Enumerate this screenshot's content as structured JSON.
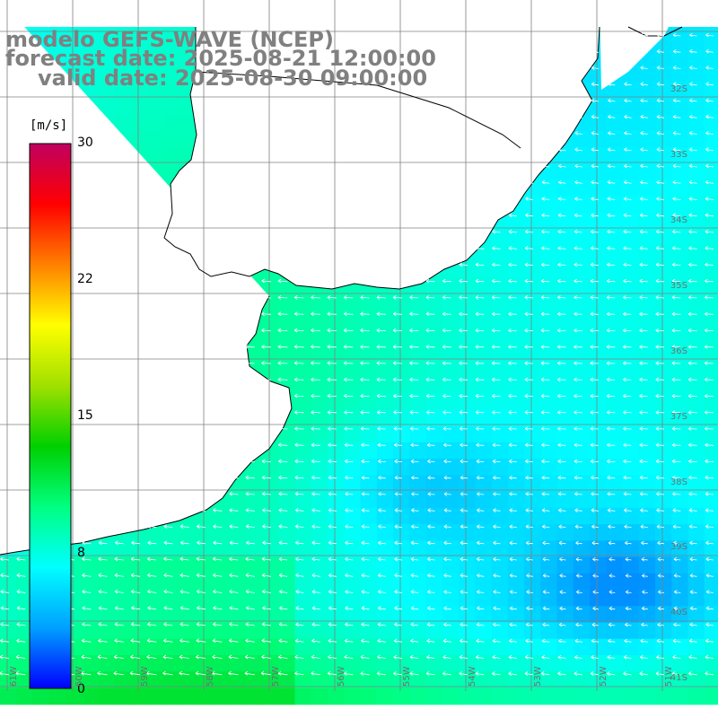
{
  "title": {
    "line1": "modelo GEFS-WAVE (NCEP)",
    "line2": "forecast date: 2025-08-21 12:00:00",
    "line3": "valid date: 2025-08-30 09:00:00"
  },
  "colorbar": {
    "unit": "[m/s]",
    "min": 0,
    "max": 30,
    "ticks": [
      {
        "label": "30",
        "value": 30
      },
      {
        "label": "22",
        "value": 22
      },
      {
        "label": "15",
        "value": 15
      },
      {
        "label": "8",
        "value": 8
      },
      {
        "label": "0",
        "value": 0
      }
    ],
    "stops": [
      "#0000ff",
      "#00a0ff",
      "#00ffff",
      "#00ff80",
      "#00d000",
      "#a0e000",
      "#ffff00",
      "#ff8000",
      "#ff0000",
      "#c00060"
    ]
  },
  "map": {
    "land_color": "#ffffff",
    "coast_color": "#000000",
    "grid_color": "#808080",
    "vector_color": "#ffffff",
    "lat_labels": [
      {
        "label": "32S"
      },
      {
        "label": "33S"
      },
      {
        "label": "34S"
      },
      {
        "label": "35S"
      },
      {
        "label": "36S"
      },
      {
        "label": "37S"
      },
      {
        "label": "38S"
      },
      {
        "label": "39S"
      },
      {
        "label": "40S"
      },
      {
        "label": "41S"
      }
    ],
    "lon_labels": [
      {
        "label": "61W"
      },
      {
        "label": "60W"
      },
      {
        "label": "59W"
      },
      {
        "label": "58W"
      },
      {
        "label": "57W"
      },
      {
        "label": "56W"
      },
      {
        "label": "55W"
      },
      {
        "label": "54W"
      },
      {
        "label": "53W"
      },
      {
        "label": "52W"
      },
      {
        "label": "51W"
      }
    ]
  }
}
